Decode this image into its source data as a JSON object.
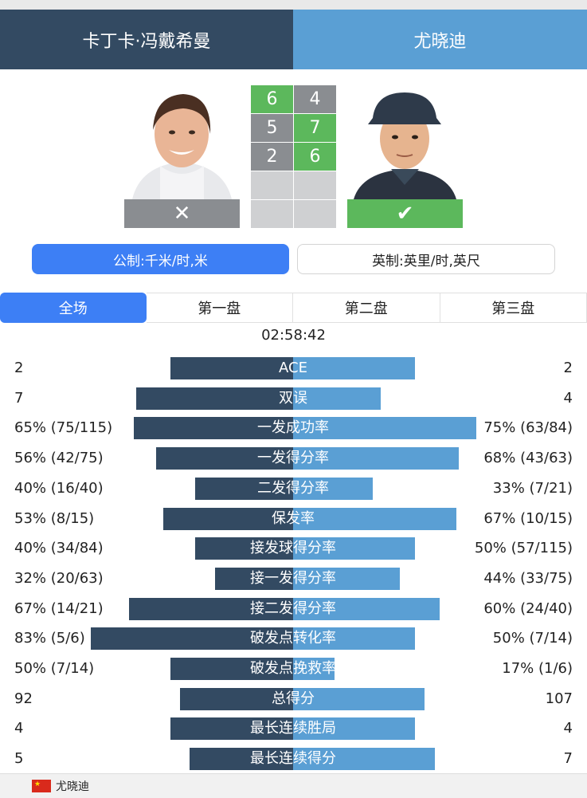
{
  "header": {
    "player1": "卡丁卡·冯戴希曼",
    "player2": "尤晓迪"
  },
  "player1_result_icon": "close-icon",
  "player2_result_icon": "check-icon",
  "scores": [
    {
      "p1": "6",
      "p2": "4",
      "winner": "p1"
    },
    {
      "p1": "5",
      "p2": "7",
      "winner": "p2"
    },
    {
      "p1": "2",
      "p2": "6",
      "winner": "p2"
    },
    {
      "p1": "",
      "p2": "",
      "winner": ""
    },
    {
      "p1": "",
      "p2": "",
      "winner": ""
    }
  ],
  "units": {
    "metric": "公制:千米/时,米",
    "imperial": "英制:英里/时,英尺"
  },
  "tabs": [
    "全场",
    "第一盘",
    "第二盘",
    "第三盘"
  ],
  "duration": "02:58:42",
  "stats": [
    {
      "label": "ACE",
      "left": "2",
      "right": "2",
      "lw": 154,
      "rw": 153
    },
    {
      "label": "双误",
      "left": "7",
      "right": "4",
      "lw": 197,
      "rw": 110
    },
    {
      "label": "一发成功率",
      "left": "65% (75/115)",
      "right": "75% (63/84)",
      "lw": 200,
      "rw": 230
    },
    {
      "label": "一发得分率",
      "left": "56% (42/75)",
      "right": "68% (43/63)",
      "lw": 172,
      "rw": 208
    },
    {
      "label": "二发得分率",
      "left": "40% (16/40)",
      "right": "33% (7/21)",
      "lw": 123,
      "rw": 100
    },
    {
      "label": "保发率",
      "left": "53% (8/15)",
      "right": "67% (10/15)",
      "lw": 163,
      "rw": 205
    },
    {
      "label": "接发球得分率",
      "left": "40% (34/84)",
      "right": "50% (57/115)",
      "lw": 123,
      "rw": 153
    },
    {
      "label": "接一发得分率",
      "left": "32% (20/63)",
      "right": "44% (33/75)",
      "lw": 98,
      "rw": 134
    },
    {
      "label": "接二发得分率",
      "left": "67% (14/21)",
      "right": "60% (24/40)",
      "lw": 206,
      "rw": 184
    },
    {
      "label": "破发点转化率",
      "left": "83% (5/6)",
      "right": "50% (7/14)",
      "lw": 254,
      "rw": 153
    },
    {
      "label": "破发点挽救率",
      "left": "50% (7/14)",
      "right": "17% (1/6)",
      "lw": 154,
      "rw": 52
    },
    {
      "label": "总得分",
      "left": "92",
      "right": "107",
      "lw": 142,
      "rw": 165
    },
    {
      "label": "最长连续胜局",
      "left": "4",
      "right": "4",
      "lw": 154,
      "rw": 153
    },
    {
      "label": "最长连续得分",
      "left": "5",
      "right": "7",
      "lw": 130,
      "rw": 178
    }
  ],
  "footer": {
    "name": "尤晓迪"
  },
  "colors": {
    "dark": "#334a62",
    "light": "#5a9fd4",
    "win": "#5cb85c",
    "lose": "#8a8d91",
    "accent": "#3d7ff5"
  }
}
